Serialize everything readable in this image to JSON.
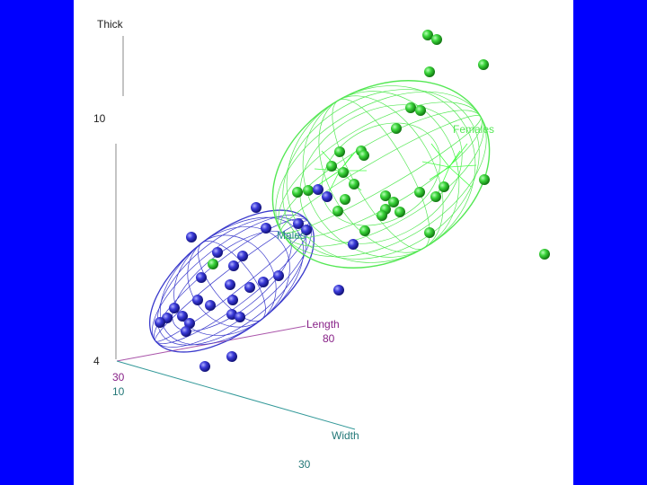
{
  "chart_data": {
    "type": "scatter",
    "projection": "3d",
    "title": "",
    "axes": {
      "thick": {
        "label": "Thick",
        "ticks": [
          "10",
          "4"
        ]
      },
      "length": {
        "label": "Length",
        "ticks": [
          "30",
          "80"
        ]
      },
      "width": {
        "label": "Width",
        "ticks": [
          "10",
          "30"
        ]
      }
    },
    "series": [
      {
        "name": "Females",
        "color": "#33dd33",
        "ellipsoid_color": "#55ee55",
        "points": [
          [
            476,
            39
          ],
          [
            486,
            44
          ],
          [
            538,
            72
          ],
          [
            478,
            80
          ],
          [
            457,
            120
          ],
          [
            468,
            123
          ],
          [
            441,
            143
          ],
          [
            378,
            169
          ],
          [
            402,
            168
          ],
          [
            405,
            173
          ],
          [
            369,
            185
          ],
          [
            382,
            192
          ],
          [
            394,
            205
          ],
          [
            331,
            214
          ],
          [
            343,
            212
          ],
          [
            384,
            222
          ],
          [
            429,
            218
          ],
          [
            438,
            225
          ],
          [
            467,
            214
          ],
          [
            485,
            219
          ],
          [
            494,
            208
          ],
          [
            376,
            235
          ],
          [
            445,
            236
          ],
          [
            429,
            233
          ],
          [
            425,
            240
          ],
          [
            406,
            257
          ],
          [
            478,
            259
          ],
          [
            539,
            200
          ],
          [
            606,
            283
          ],
          [
            237,
            294
          ]
        ]
      },
      {
        "name": "Males",
        "color": "#3333cc",
        "ellipsoid_color": "#3333cc",
        "points": [
          [
            285,
            231
          ],
          [
            354,
            211
          ],
          [
            364,
            219
          ],
          [
            296,
            254
          ],
          [
            332,
            249
          ],
          [
            341,
            256
          ],
          [
            393,
            272
          ],
          [
            213,
            264
          ],
          [
            242,
            281
          ],
          [
            260,
            296
          ],
          [
            270,
            285
          ],
          [
            224,
            309
          ],
          [
            256,
            317
          ],
          [
            278,
            320
          ],
          [
            293,
            314
          ],
          [
            310,
            307
          ],
          [
            377,
            323
          ],
          [
            220,
            334
          ],
          [
            234,
            340
          ],
          [
            259,
            334
          ],
          [
            194,
            343
          ],
          [
            186,
            354
          ],
          [
            203,
            352
          ],
          [
            211,
            360
          ],
          [
            258,
            350
          ],
          [
            267,
            353
          ],
          [
            207,
            369
          ],
          [
            178,
            359
          ],
          [
            258,
            397
          ],
          [
            228,
            408
          ]
        ]
      }
    ]
  }
}
